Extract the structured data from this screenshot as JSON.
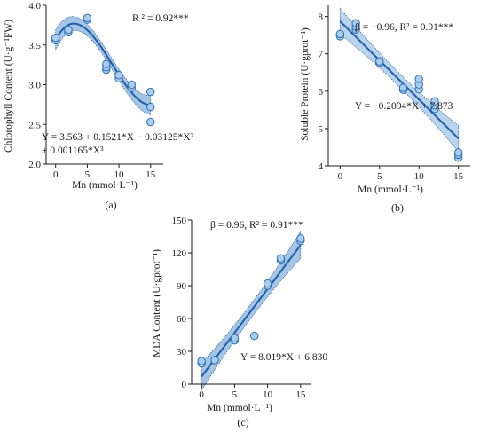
{
  "chart_data": [
    {
      "type": "scatter",
      "panel_label": "(a)",
      "xlabel": "Mn (mmol·L⁻¹)",
      "ylabel": "Chlorophyll Content (U·g⁻¹FW)",
      "xlim": [
        -1.5,
        17
      ],
      "ylim": [
        2.0,
        4.0
      ],
      "xticks": [
        "0",
        "5",
        "10",
        "15"
      ],
      "xtick_values": [
        0,
        5,
        10,
        15
      ],
      "yticks": [
        "2.0",
        "2.5",
        "3.0",
        "3.5",
        "4.0"
      ],
      "ytick_values": [
        2.0,
        2.5,
        3.0,
        3.5,
        4.0
      ],
      "annotations": [
        "R ² = 0.92***",
        "Y = 3.563 + 0.1521*X − 0.03125*X²",
        "+ 0.001165*X³"
      ],
      "points": [
        {
          "x": 0,
          "y": 3.56
        },
        {
          "x": 0,
          "y": 3.59
        },
        {
          "x": 2,
          "y": 3.66
        },
        {
          "x": 2,
          "y": 3.69
        },
        {
          "x": 5,
          "y": 3.82
        },
        {
          "x": 5,
          "y": 3.84
        },
        {
          "x": 8,
          "y": 3.19
        },
        {
          "x": 8,
          "y": 3.22
        },
        {
          "x": 8,
          "y": 3.26
        },
        {
          "x": 10,
          "y": 3.08
        },
        {
          "x": 10,
          "y": 3.12
        },
        {
          "x": 12,
          "y": 2.96
        },
        {
          "x": 12,
          "y": 3.0
        },
        {
          "x": 15,
          "y": 2.53
        },
        {
          "x": 15,
          "y": 2.72
        },
        {
          "x": 15,
          "y": 2.91
        }
      ],
      "fit": {
        "kind": "cubic",
        "coef": [
          3.563,
          0.1521,
          -0.03125,
          0.001165
        ],
        "x_range": [
          0,
          15
        ],
        "ci_half_width": 0.1
      },
      "colors": {
        "point_fill": "#a9cdee",
        "point_stroke": "#2f6fb4",
        "line": "#1f5fa8",
        "band": "#5b95d3"
      }
    },
    {
      "type": "scatter",
      "panel_label": "(b)",
      "xlabel": "Mn (mmol·L⁻¹)",
      "ylabel": "Soluble Protein (U·gprot⁻¹)",
      "xlim": [
        -1.5,
        16.5
      ],
      "ylim": [
        4,
        8.3
      ],
      "xticks": [
        "0",
        "5",
        "10",
        "15"
      ],
      "xtick_values": [
        0,
        5,
        10,
        15
      ],
      "yticks": [
        "4",
        "5",
        "6",
        "7",
        "8"
      ],
      "ytick_values": [
        4,
        5,
        6,
        7,
        8
      ],
      "annotations": [
        "β = −0.96, R² = 0.91***",
        "Y = −0.2094*X + 7.873"
      ],
      "points": [
        {
          "x": 0,
          "y": 7.47
        },
        {
          "x": 0,
          "y": 7.53
        },
        {
          "x": 2,
          "y": 7.65
        },
        {
          "x": 2,
          "y": 7.73
        },
        {
          "x": 2,
          "y": 7.82
        },
        {
          "x": 5,
          "y": 6.76
        },
        {
          "x": 5,
          "y": 6.8
        },
        {
          "x": 8,
          "y": 6.04
        },
        {
          "x": 8,
          "y": 6.09
        },
        {
          "x": 10,
          "y": 6.05
        },
        {
          "x": 10,
          "y": 6.18
        },
        {
          "x": 10,
          "y": 6.33
        },
        {
          "x": 12,
          "y": 5.53
        },
        {
          "x": 12,
          "y": 5.62
        },
        {
          "x": 12,
          "y": 5.73
        },
        {
          "x": 15,
          "y": 4.22
        },
        {
          "x": 15,
          "y": 4.3
        },
        {
          "x": 15,
          "y": 4.36
        }
      ],
      "fit": {
        "kind": "linear",
        "coef": [
          7.873,
          -0.2094
        ],
        "x_range": [
          0,
          15
        ],
        "ci_half_width": 0.28
      },
      "colors": {
        "point_fill": "#a9cdee",
        "point_stroke": "#2f6fb4",
        "line": "#1f5fa8",
        "band": "#7fb0e2"
      }
    },
    {
      "type": "scatter",
      "panel_label": "(c)",
      "xlabel": "Mn (mmol·L⁻¹)",
      "ylabel": "MDA Content (U·gprot⁻¹)",
      "xlim": [
        -1.5,
        16.5
      ],
      "ylim": [
        0,
        150
      ],
      "xticks": [
        "0",
        "5",
        "10",
        "15"
      ],
      "xtick_values": [
        0,
        5,
        10,
        15
      ],
      "yticks": [
        "0",
        "30",
        "60",
        "90",
        "120",
        "150"
      ],
      "ytick_values": [
        0,
        30,
        60,
        90,
        120,
        150
      ],
      "annotations": [
        "β = 0.96, R² = 0.91***",
        "Y = 8.019*X + 6.830"
      ],
      "points": [
        {
          "x": 0,
          "y": 19
        },
        {
          "x": 0,
          "y": 21
        },
        {
          "x": 2,
          "y": 22
        },
        {
          "x": 5,
          "y": 40
        },
        {
          "x": 5,
          "y": 42
        },
        {
          "x": 8,
          "y": 44
        },
        {
          "x": 10,
          "y": 90
        },
        {
          "x": 10,
          "y": 92
        },
        {
          "x": 12,
          "y": 113
        },
        {
          "x": 12,
          "y": 115
        },
        {
          "x": 15,
          "y": 131
        },
        {
          "x": 15,
          "y": 133
        }
      ],
      "fit": {
        "kind": "linear",
        "coef": [
          6.83,
          8.019
        ],
        "x_range": [
          0,
          15
        ],
        "ci_half_width": 10
      },
      "colors": {
        "point_fill": "#a9cdee",
        "point_stroke": "#2f6fb4",
        "line": "#1f5fa8",
        "band": "#5b95d3"
      }
    }
  ]
}
